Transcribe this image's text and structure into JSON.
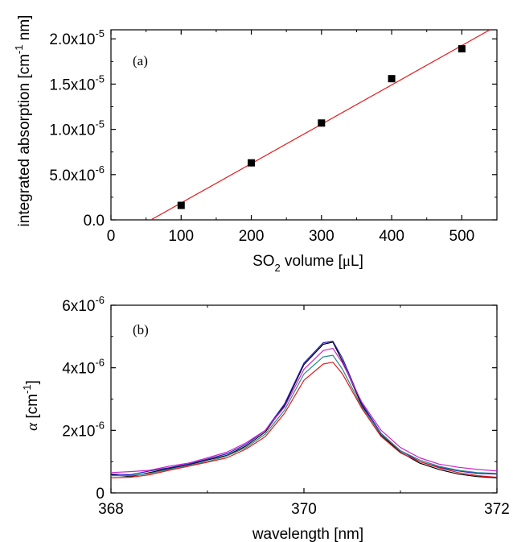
{
  "chart_data": [
    {
      "panel_label": "(a)",
      "type": "scatter",
      "xlabel_parts": [
        "SO",
        "2",
        " volume [",
        "μ",
        "L]"
      ],
      "ylabel_parts": [
        "integrated absorption  [cm",
        "-1",
        " nm]"
      ],
      "xlim": [
        0,
        550
      ],
      "ylim": [
        0,
        2.1e-05
      ],
      "x_ticks": [
        "0",
        "100",
        "200",
        "300",
        "400",
        "500"
      ],
      "x_tick_values": [
        0,
        100,
        200,
        300,
        400,
        500
      ],
      "y_ticks": [
        {
          "value": 0,
          "label": "0.0",
          "exp": ""
        },
        {
          "value": 5e-06,
          "label": "5.0x10",
          "exp": "-6"
        },
        {
          "value": 1e-05,
          "label": "1.0x10",
          "exp": "-5"
        },
        {
          "value": 1.5e-05,
          "label": "1.5x10",
          "exp": "-5"
        },
        {
          "value": 2e-05,
          "label": "2.0x10",
          "exp": "-5"
        }
      ],
      "points": [
        {
          "x": 100,
          "y": 1.6e-06
        },
        {
          "x": 200,
          "y": 6.3e-06
        },
        {
          "x": 300,
          "y": 1.07e-05
        },
        {
          "x": 400,
          "y": 1.56e-05
        },
        {
          "x": 500,
          "y": 1.89e-05
        }
      ],
      "fit_line": {
        "x": [
          57,
          540
        ],
        "y": [
          0,
          2.1e-05
        ],
        "color": "#e41a1c"
      }
    },
    {
      "panel_label": "(b)",
      "type": "line",
      "xlabel": "wavelength [nm]",
      "ylabel_parts": [
        "α",
        " [cm",
        "-1",
        "]"
      ],
      "xlim": [
        368,
        372
      ],
      "ylim": [
        0,
        6e-06
      ],
      "x_ticks": [
        "368",
        "370",
        "372"
      ],
      "x_tick_values": [
        368,
        370,
        372
      ],
      "y_ticks": [
        {
          "value": 0,
          "label": "0",
          "exp": ""
        },
        {
          "value": 2e-06,
          "label": "2x10",
          "exp": "-6"
        },
        {
          "value": 4e-06,
          "label": "4x10",
          "exp": "-6"
        },
        {
          "value": 6e-06,
          "label": "6x10",
          "exp": "-6"
        }
      ],
      "x": [
        368.0,
        368.2,
        368.4,
        368.6,
        368.8,
        369.0,
        369.2,
        369.4,
        369.6,
        369.8,
        370.0,
        370.2,
        370.3,
        370.4,
        370.6,
        370.8,
        371.0,
        371.2,
        371.4,
        371.6,
        371.8,
        372.0
      ],
      "series": [
        {
          "color": "#000000",
          "values": [
            5.8e-07,
            5.2e-07,
            6.5e-07,
            7.8e-07,
            9e-07,
            1.05e-06,
            1.2e-06,
            1.5e-06,
            1.95e-06,
            2.8e-06,
            4.1e-06,
            4.75e-06,
            4.82e-06,
            4.2e-06,
            2.8e-06,
            1.85e-06,
            1.3e-06,
            9.5e-07,
            7.5e-07,
            6e-07,
            5.2e-07,
            4.8e-07
          ]
        },
        {
          "color": "#1f1fbf",
          "values": [
            6e-07,
            5.8e-07,
            7e-07,
            8e-07,
            9.2e-07,
            1.08e-06,
            1.25e-06,
            1.55e-06,
            2e-06,
            2.85e-06,
            4.15e-06,
            4.8e-06,
            4.85e-06,
            4.3e-06,
            2.85e-06,
            1.9e-06,
            1.35e-06,
            1e-06,
            8.2e-07,
            7e-07,
            6.2e-07,
            6e-07
          ]
        },
        {
          "color": "#cc22cc",
          "values": [
            6.5e-07,
            6.8e-07,
            7.2e-07,
            8.5e-07,
            9.5e-07,
            1.12e-06,
            1.3e-06,
            1.6e-06,
            2e-06,
            2.75e-06,
            3.95e-06,
            4.55e-06,
            4.62e-06,
            4.15e-06,
            2.9e-06,
            2e-06,
            1.45e-06,
            1.12e-06,
            9.2e-07,
            8.2e-07,
            7.5e-07,
            7e-07
          ]
        },
        {
          "color": "#2a8a8a",
          "values": [
            5.5e-07,
            5.5e-07,
            6.2e-07,
            7.5e-07,
            8.8e-07,
            1e-06,
            1.18e-06,
            1.45e-06,
            1.88e-06,
            2.65e-06,
            3.8e-06,
            4.35e-06,
            4.4e-06,
            3.95e-06,
            2.75e-06,
            1.88e-06,
            1.35e-06,
            1.05e-06,
            8.5e-07,
            7.2e-07,
            6.5e-07,
            6.2e-07
          ]
        },
        {
          "color": "#e41a1c",
          "values": [
            4.8e-07,
            5e-07,
            5.8e-07,
            7.2e-07,
            8.5e-07,
            9.8e-07,
            1.12e-06,
            1.4e-06,
            1.8e-06,
            2.55e-06,
            3.6e-06,
            4.12e-06,
            4.18e-06,
            3.8e-06,
            2.7e-06,
            1.8e-06,
            1.28e-06,
            1e-06,
            8e-07,
            6.5e-07,
            5.5e-07,
            5e-07
          ]
        }
      ]
    }
  ]
}
